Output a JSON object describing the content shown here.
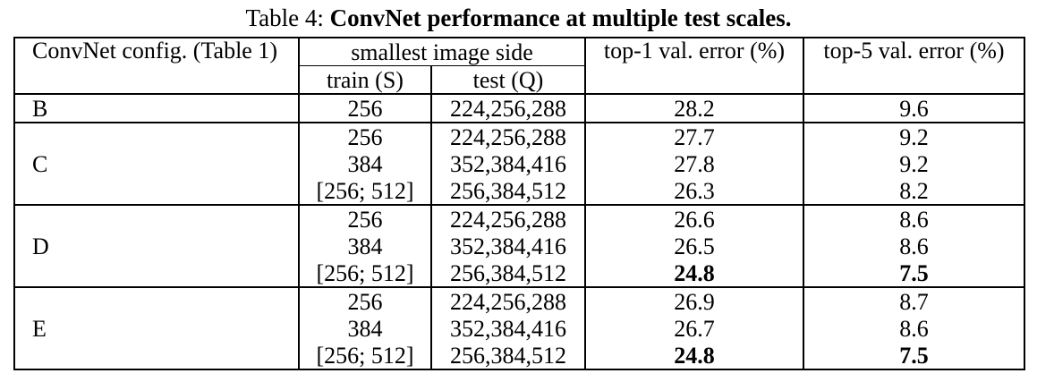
{
  "caption": {
    "prefix": "Table 4: ",
    "title": "ConvNet performance at multiple test scales."
  },
  "header": {
    "config": "ConvNet config. (Table 1)",
    "smallest_side": "smallest image side",
    "train": "train (S)",
    "test": "test (Q)",
    "top1": "top-1 val. error (%)",
    "top5": "top-5 val. error (%)"
  },
  "groups": [
    {
      "config": "B",
      "rows": [
        {
          "train": "256",
          "test": "224,256,288",
          "top1": "28.2",
          "top5": "9.6"
        }
      ]
    },
    {
      "config": "C",
      "rows": [
        {
          "train": "256",
          "test": "224,256,288",
          "top1": "27.7",
          "top5": "9.2"
        },
        {
          "train": "384",
          "test": "352,384,416",
          "top1": "27.8",
          "top5": "9.2"
        },
        {
          "train": "[256; 512]",
          "test": "256,384,512",
          "top1": "26.3",
          "top5": "8.2"
        }
      ]
    },
    {
      "config": "D",
      "rows": [
        {
          "train": "256",
          "test": "224,256,288",
          "top1": "26.6",
          "top5": "8.6"
        },
        {
          "train": "384",
          "test": "352,384,416",
          "top1": "26.5",
          "top5": "8.6"
        },
        {
          "train": "[256; 512]",
          "test": "256,384,512",
          "top1": "24.8",
          "top5": "7.5"
        }
      ]
    },
    {
      "config": "E",
      "rows": [
        {
          "train": "256",
          "test": "224,256,288",
          "top1": "26.9",
          "top5": "8.7"
        },
        {
          "train": "384",
          "test": "352,384,416",
          "top1": "26.7",
          "top5": "8.6"
        },
        {
          "train": "[256; 512]",
          "test": "256,384,512",
          "top1": "24.8",
          "top5": "7.5"
        }
      ]
    }
  ],
  "bold_cells": [
    "groups.2.rows.2.top1",
    "groups.2.rows.2.top5",
    "groups.3.rows.2.top1",
    "groups.3.rows.2.top5"
  ]
}
